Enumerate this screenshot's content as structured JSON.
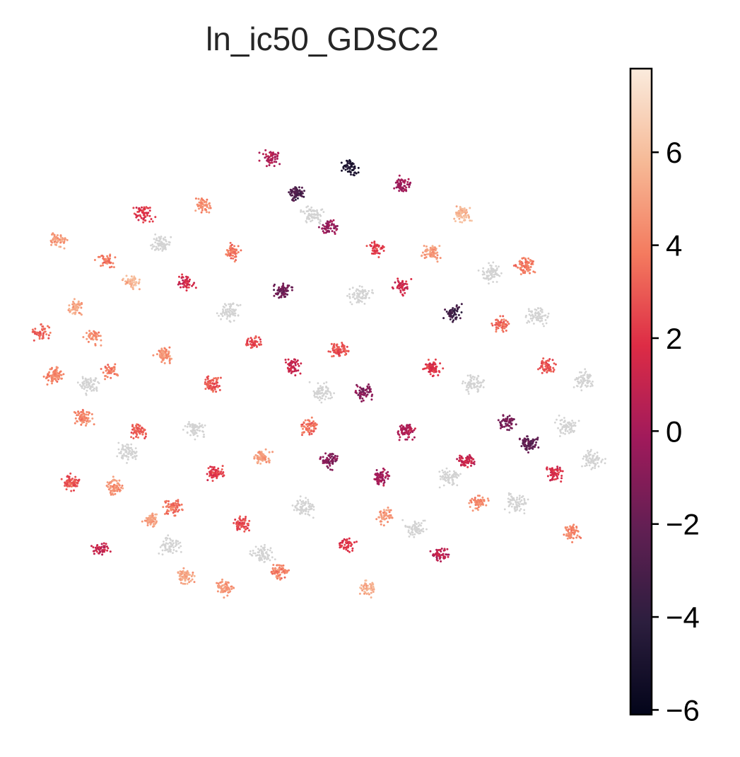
{
  "chart_data": {
    "type": "scatter",
    "title": "ln_ic50_GDSC2",
    "xlabel": "",
    "ylabel": "",
    "axes_visible": false,
    "grid": false,
    "na_color": "#d3d3d3",
    "colormap": "rocket",
    "colorbar": {
      "placement": "right",
      "range": [
        -6.1,
        7.8
      ],
      "ticks": [
        -6,
        -4,
        -2,
        0,
        2,
        4,
        6
      ],
      "tick_labels": [
        "−6",
        "−4",
        "−2",
        "0",
        "2",
        "4",
        "6"
      ],
      "colors": [
        "#03051a",
        "#2c1e3e",
        "#611f53",
        "#a11a5b",
        "#dd2c45",
        "#f47b5f",
        "#f6ba97",
        "#faebdd"
      ]
    },
    "point_groups": [
      {
        "x": -5.8,
        "y": 2.0,
        "value": 5.2
      },
      {
        "x": -6.2,
        "y": 3.6,
        "value": 4.9
      },
      {
        "x": -5.1,
        "y": 3.1,
        "value": 3.8
      },
      {
        "x": -4.5,
        "y": 2.6,
        "value": 5.6
      },
      {
        "x": -5.4,
        "y": 1.3,
        "value": 4.4
      },
      {
        "x": -6.3,
        "y": 0.4,
        "value": 4.1
      },
      {
        "x": -6.6,
        "y": 1.4,
        "value": 3.2
      },
      {
        "x": -5.0,
        "y": 0.5,
        "value": 3.9
      },
      {
        "x": -5.6,
        "y": -0.6,
        "value": 4.2
      },
      {
        "x": -4.3,
        "y": -0.9,
        "value": 3.1
      },
      {
        "x": -4.9,
        "y": -2.2,
        "value": 4.5
      },
      {
        "x": -5.9,
        "y": -2.1,
        "value": 2.9
      },
      {
        "x": -4.0,
        "y": -3.0,
        "value": 5.0
      },
      {
        "x": -5.2,
        "y": -3.7,
        "value": 1.2
      },
      {
        "x": -3.2,
        "y": -4.3,
        "value": 5.3
      },
      {
        "x": -2.3,
        "y": -4.6,
        "value": 4.7
      },
      {
        "x": -1.0,
        "y": -4.2,
        "value": 4.0
      },
      {
        "x": 0.6,
        "y": -3.6,
        "value": 2.1
      },
      {
        "x": 1.5,
        "y": -2.9,
        "value": 4.6
      },
      {
        "x": 2.8,
        "y": -3.8,
        "value": 0.8
      },
      {
        "x": 3.7,
        "y": -2.6,
        "value": 4.3
      },
      {
        "x": 3.4,
        "y": -1.6,
        "value": 1.0
      },
      {
        "x": 4.4,
        "y": -0.7,
        "value": -1.5
      },
      {
        "x": 4.9,
        "y": -1.2,
        "value": -2.3
      },
      {
        "x": 5.5,
        "y": -1.9,
        "value": 1.7
      },
      {
        "x": 5.3,
        "y": 0.6,
        "value": 2.8
      },
      {
        "x": 4.2,
        "y": 1.6,
        "value": 3.3
      },
      {
        "x": 3.1,
        "y": 1.9,
        "value": -3.4
      },
      {
        "x": 1.9,
        "y": 2.5,
        "value": 1.4
      },
      {
        "x": 2.6,
        "y": 3.3,
        "value": 4.8
      },
      {
        "x": 1.3,
        "y": 3.4,
        "value": 2.2
      },
      {
        "x": 0.2,
        "y": 3.9,
        "value": -0.5
      },
      {
        "x": -0.6,
        "y": 4.7,
        "value": -2.8
      },
      {
        "x": -1.2,
        "y": 5.5,
        "value": 0.3
      },
      {
        "x": 0.7,
        "y": 5.3,
        "value": -4.8
      },
      {
        "x": 1.9,
        "y": 4.9,
        "value": -0.2
      },
      {
        "x": -2.1,
        "y": 3.3,
        "value": 3.7
      },
      {
        "x": -3.2,
        "y": 2.6,
        "value": 1.6
      },
      {
        "x": -3.7,
        "y": 0.9,
        "value": 4.6
      },
      {
        "x": -2.6,
        "y": 0.2,
        "value": 3.0
      },
      {
        "x": -1.6,
        "y": 1.2,
        "value": 2.5
      },
      {
        "x": -0.7,
        "y": 0.6,
        "value": 1.1
      },
      {
        "x": 0.4,
        "y": 1.0,
        "value": 2.7
      },
      {
        "x": 1.0,
        "y": 0.0,
        "value": -0.9
      },
      {
        "x": -0.3,
        "y": -0.8,
        "value": 3.5
      },
      {
        "x": -1.4,
        "y": -1.5,
        "value": 4.9
      },
      {
        "x": -2.5,
        "y": -1.9,
        "value": 2.3
      },
      {
        "x": 0.2,
        "y": -1.6,
        "value": -1.1
      },
      {
        "x": 2.0,
        "y": -0.9,
        "value": 0.4
      },
      {
        "x": 2.6,
        "y": 0.6,
        "value": 1.9
      },
      {
        "x": -3.5,
        "y": -2.7,
        "value": 3.6
      },
      {
        "x": -1.9,
        "y": -3.1,
        "value": 2.6
      },
      {
        "x": 1.1,
        "y": -4.6,
        "value": 5.5
      },
      {
        "x": -4.2,
        "y": 4.2,
        "value": 2.0
      },
      {
        "x": -2.8,
        "y": 4.4,
        "value": 4.4
      },
      {
        "x": 4.8,
        "y": 3.0,
        "value": 3.9
      },
      {
        "x": 3.3,
        "y": 4.2,
        "value": 5.8
      },
      {
        "x": 5.9,
        "y": -3.3,
        "value": 4.2
      },
      {
        "x": 1.4,
        "y": -2.0,
        "value": 0.0
      },
      {
        "x": -0.9,
        "y": 2.4,
        "value": -1.8
      }
    ],
    "gray_groups": [
      {
        "x": -3.8,
        "y": 3.5
      },
      {
        "x": -4.6,
        "y": -1.4
      },
      {
        "x": -3.0,
        "y": -0.9
      },
      {
        "x": -2.2,
        "y": 1.9
      },
      {
        "x": 5.1,
        "y": 1.8
      },
      {
        "x": 6.2,
        "y": 0.3
      },
      {
        "x": 5.8,
        "y": -0.8
      },
      {
        "x": 4.0,
        "y": 2.8
      },
      {
        "x": 3.0,
        "y": -2.0
      },
      {
        "x": 0.9,
        "y": 2.3
      },
      {
        "x": -1.4,
        "y": -3.8
      },
      {
        "x": -0.4,
        "y": -2.7
      },
      {
        "x": 2.2,
        "y": -3.2
      },
      {
        "x": 4.6,
        "y": -2.6
      },
      {
        "x": -0.2,
        "y": 4.2
      },
      {
        "x": 6.4,
        "y": -1.6
      },
      {
        "x": 3.6,
        "y": 0.2
      },
      {
        "x": -3.6,
        "y": -3.6
      },
      {
        "x": 0.0,
        "y": 0.0
      },
      {
        "x": -5.5,
        "y": 0.2
      }
    ]
  }
}
